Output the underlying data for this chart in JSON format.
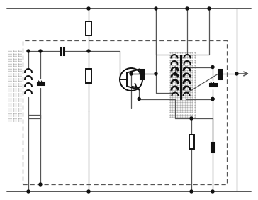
{
  "bg_color": "#ffffff",
  "line_color": "#555555",
  "comp_color": "#111111",
  "figsize": [
    3.64,
    2.82
  ],
  "dpi": 100
}
